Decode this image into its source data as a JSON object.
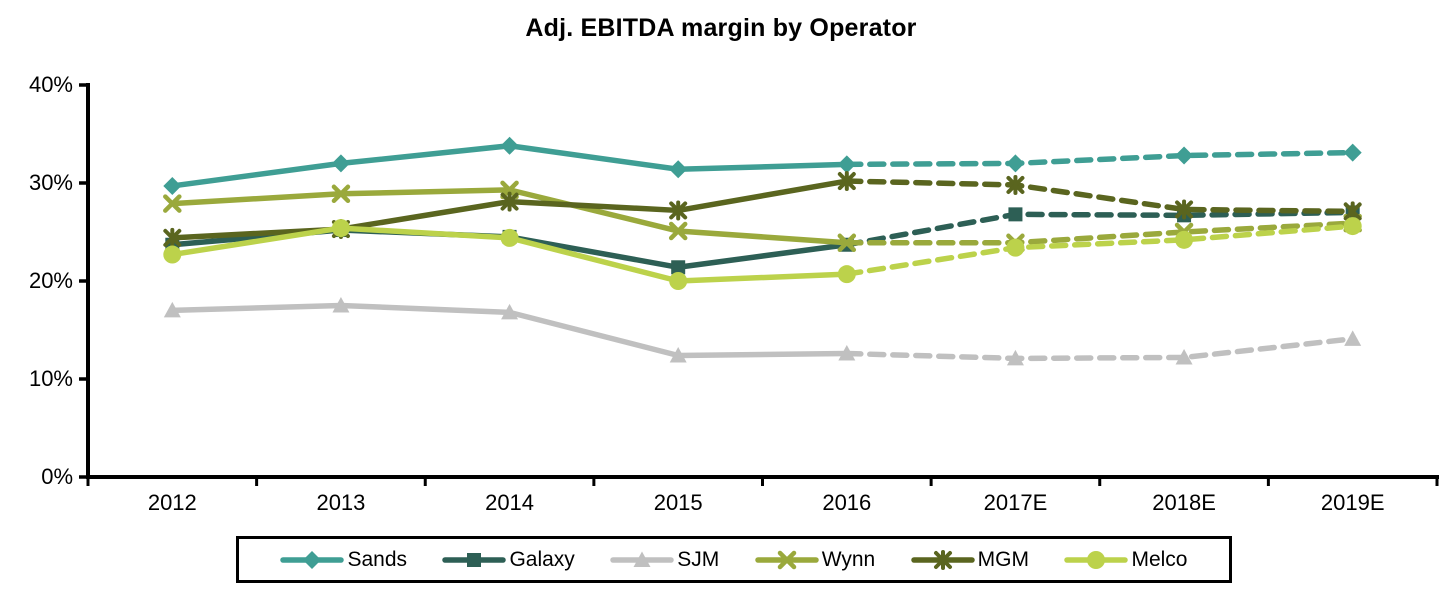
{
  "title": "Adj. EBITDA margin by Operator",
  "chart_data": {
    "type": "line",
    "title": "Adj. EBITDA margin by Operator",
    "categories": [
      "2012",
      "2013",
      "2014",
      "2015",
      "2016",
      "2017E",
      "2018E",
      "2019E"
    ],
    "series": [
      {
        "name": "Sands",
        "color": "#3F9E94",
        "marker": "diamond",
        "values": [
          29.7,
          32.0,
          33.8,
          31.4,
          31.9,
          32.0,
          32.8,
          33.1
        ]
      },
      {
        "name": "Galaxy",
        "color": "#2D5F55",
        "marker": "square",
        "values": [
          23.7,
          25.2,
          24.5,
          21.4,
          23.7,
          26.8,
          26.7,
          27.0
        ]
      },
      {
        "name": "SJM",
        "color": "#C0C0C0",
        "marker": "triangle",
        "values": [
          17.0,
          17.5,
          16.8,
          12.4,
          12.6,
          12.1,
          12.2,
          14.1
        ]
      },
      {
        "name": "Wynn",
        "color": "#9AA93C",
        "marker": "x",
        "values": [
          27.9,
          28.9,
          29.3,
          25.1,
          23.9,
          23.9,
          25.0,
          25.9
        ]
      },
      {
        "name": "MGM",
        "color": "#5A651F",
        "marker": "asterisk",
        "values": [
          24.4,
          25.3,
          28.1,
          27.2,
          30.2,
          29.8,
          27.3,
          27.1
        ]
      },
      {
        "name": "Melco",
        "color": "#BCD24B",
        "marker": "circle",
        "values": [
          22.7,
          25.4,
          24.4,
          20.0,
          20.7,
          23.4,
          24.2,
          25.6
        ]
      }
    ],
    "solid_through_index": 4,
    "ylim": [
      0,
      40
    ],
    "yticks": [
      {
        "value": 0,
        "label": "0%"
      },
      {
        "value": 10,
        "label": "10%"
      },
      {
        "value": 20,
        "label": "20%"
      },
      {
        "value": 30,
        "label": "30%"
      },
      {
        "value": 40,
        "label": "40%"
      }
    ],
    "xlabel": "",
    "ylabel": "",
    "grid": false,
    "legend_position": "bottom",
    "axis_color": "#000000"
  }
}
